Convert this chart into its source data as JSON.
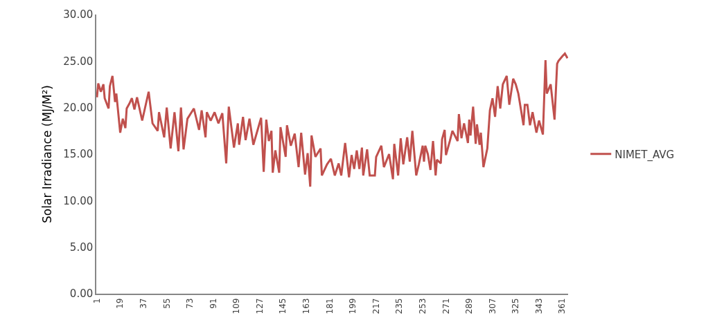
{
  "chart_data": {
    "type": "line",
    "ylabel": "Solar Irradiance (MJ/M²)",
    "x": [
      1,
      2,
      4,
      6,
      7,
      10,
      11,
      13,
      15,
      16,
      19,
      21,
      23,
      24,
      26,
      28,
      30,
      32,
      36,
      41,
      44,
      48,
      49,
      53,
      55,
      58,
      61,
      64,
      66,
      68,
      71,
      76,
      80,
      82,
      85,
      86,
      89,
      92,
      95,
      98,
      101,
      103,
      107,
      110,
      111,
      114,
      116,
      119,
      122,
      128,
      130,
      132,
      134,
      136,
      137,
      139,
      142,
      143,
      147,
      148,
      151,
      154,
      157,
      159,
      162,
      164,
      166,
      167,
      170,
      174,
      175,
      179,
      182,
      185,
      188,
      190,
      193,
      196,
      198,
      200,
      202,
      204,
      206,
      207,
      210,
      212,
      216,
      217,
      221,
      223,
      227,
      230,
      231,
      234,
      236,
      238,
      241,
      243,
      245,
      248,
      250,
      253,
      254,
      255,
      257,
      259,
      261,
      263,
      264,
      267,
      268,
      270,
      271,
      274,
      276,
      280,
      281,
      283,
      285,
      288,
      289,
      290,
      292,
      294,
      295,
      297,
      298,
      300,
      303,
      305,
      307,
      309,
      311,
      313,
      315,
      318,
      320,
      323,
      325,
      327,
      331,
      332,
      334,
      336,
      338,
      341,
      343,
      346,
      348,
      349,
      352,
      355,
      357,
      358,
      361,
      363,
      365
    ],
    "series": [
      {
        "name": "NIMET_AVG",
        "color": "#c0504d",
        "values": [
          21.1,
          22.6,
          21.7,
          22.5,
          21.0,
          19.9,
          22.3,
          23.4,
          20.6,
          21.5,
          17.3,
          18.8,
          17.8,
          19.9,
          20.4,
          21.0,
          19.8,
          21.1,
          18.6,
          21.7,
          18.3,
          17.5,
          19.5,
          16.8,
          20.0,
          15.6,
          19.5,
          15.3,
          20.0,
          15.5,
          18.8,
          19.9,
          17.6,
          19.7,
          16.8,
          19.5,
          18.6,
          19.5,
          18.3,
          19.4,
          14.0,
          20.1,
          15.7,
          18.3,
          16.0,
          19.0,
          16.5,
          18.8,
          16.0,
          18.9,
          13.1,
          18.7,
          16.4,
          17.5,
          13.0,
          15.4,
          13.0,
          17.9,
          14.7,
          18.1,
          15.9,
          17.2,
          13.6,
          17.3,
          12.8,
          15.1,
          11.5,
          17.0,
          14.7,
          15.6,
          12.7,
          13.9,
          14.5,
          12.7,
          14.0,
          12.7,
          16.2,
          12.5,
          14.9,
          13.4,
          15.4,
          13.4,
          15.7,
          12.7,
          15.5,
          12.7,
          12.7,
          14.7,
          15.9,
          13.6,
          15.0,
          12.3,
          16.1,
          12.7,
          16.7,
          13.9,
          16.8,
          14.2,
          17.5,
          12.7,
          13.9,
          15.9,
          14.2,
          15.9,
          15.0,
          13.3,
          16.4,
          12.7,
          14.4,
          14.0,
          16.6,
          17.6,
          14.9,
          16.4,
          17.5,
          16.4,
          19.3,
          16.7,
          18.3,
          16.2,
          18.7,
          17.0,
          20.1,
          16.1,
          18.2,
          16.0,
          17.3,
          13.6,
          15.6,
          19.7,
          21.0,
          19.0,
          22.3,
          19.9,
          22.5,
          23.4,
          20.3,
          23.1,
          22.5,
          21.5,
          18.1,
          20.3,
          20.3,
          18.1,
          19.5,
          17.3,
          18.6,
          17.1,
          25.1,
          21.5,
          22.5,
          18.7,
          24.7,
          25.0,
          25.5,
          25.8,
          25.3
        ]
      }
    ],
    "xlim": [
      0.5,
      365.5
    ],
    "xticks": [
      1,
      19,
      37,
      55,
      73,
      91,
      109,
      127,
      145,
      163,
      181,
      199,
      217,
      235,
      253,
      271,
      289,
      307,
      325,
      343,
      361
    ],
    "ylim": [
      0,
      30
    ],
    "yticks": [
      {
        "value": 0,
        "label": "0.00"
      },
      {
        "value": 5,
        "label": "5.00"
      },
      {
        "value": 10,
        "label": "10.00"
      },
      {
        "value": 15,
        "label": "15.00"
      },
      {
        "value": 20,
        "label": "20.00"
      },
      {
        "value": 25,
        "label": "25.00"
      },
      {
        "value": 30,
        "label": "30.00"
      }
    ],
    "legend": "right",
    "marker": "none",
    "line_style": "solid"
  }
}
